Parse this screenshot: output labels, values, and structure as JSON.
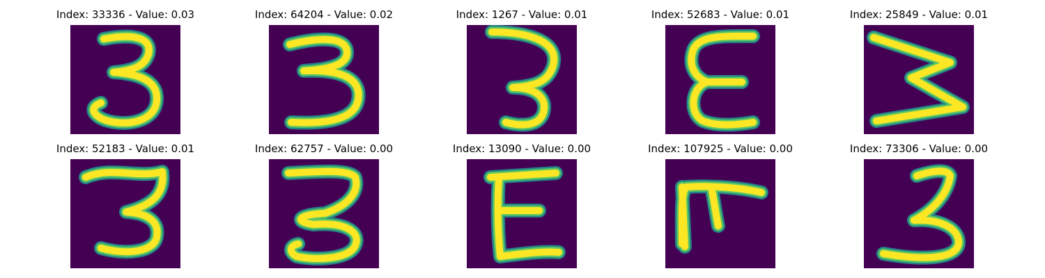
{
  "colors": {
    "background": "#440154",
    "foreground": "#fde725",
    "edge": "#21918c",
    "edge_light": "#5ec962"
  },
  "panels": [
    {
      "title": "Index: 33336 - Value: 0.03",
      "glyph": "3"
    },
    {
      "title": "Index: 64204 - Value: 0.02",
      "glyph": "3"
    },
    {
      "title": "Index: 1267 - Value: 0.01",
      "glyph": "3"
    },
    {
      "title": "Index: 52683 - Value: 0.01",
      "glyph": "E"
    },
    {
      "title": "Index: 25849 - Value: 0.01",
      "glyph": "W"
    },
    {
      "title": "Index: 52183 - Value: 0.01",
      "glyph": "3"
    },
    {
      "title": "Index: 62757 - Value: 0.00",
      "glyph": "3"
    },
    {
      "title": "Index: 13090 - Value: 0.00",
      "glyph": "E"
    },
    {
      "title": "Index: 107925 - Value: 0.00",
      "glyph": "F"
    },
    {
      "title": "Index: 73306 - Value: 0.00",
      "glyph": "3"
    }
  ]
}
